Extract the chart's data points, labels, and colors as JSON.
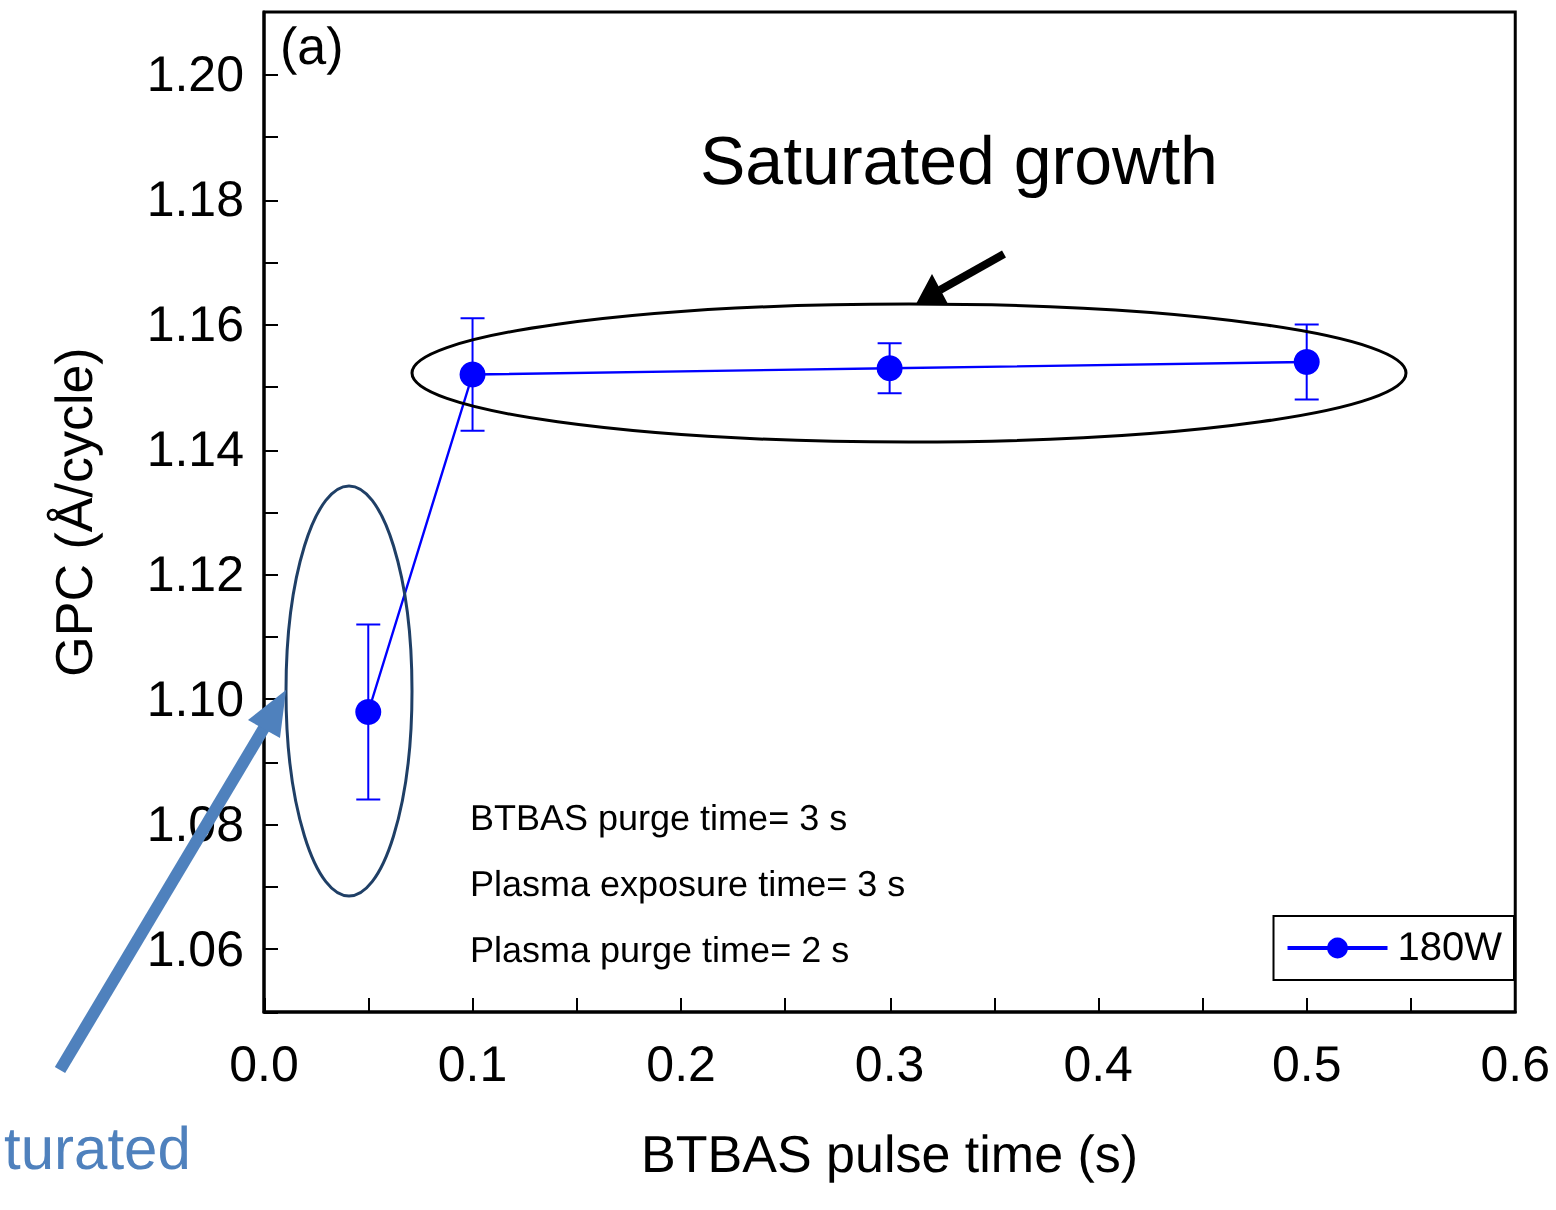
{
  "chart_data": {
    "type": "line",
    "xlabel": "BTBAS pulse time (s)",
    "ylabel": "GPC (Å/cycle)",
    "x": [
      0.05,
      0.1,
      0.3,
      0.5
    ],
    "series": [
      {
        "name": "180W",
        "color": "#0000ff",
        "values": [
          1.098,
          1.152,
          1.153,
          1.154
        ],
        "errors": [
          [
            1.084,
            1.112
          ],
          [
            1.143,
            1.161
          ],
          [
            1.149,
            1.157
          ],
          [
            1.148,
            1.16
          ]
        ]
      }
    ],
    "xlim": [
      0,
      0.6
    ],
    "xticks": [
      {
        "value": 0,
        "label": "0.0"
      },
      {
        "value": 0.05,
        "label": null
      },
      0.1,
      {
        "value": 0.15,
        "label": null
      },
      0.2,
      {
        "value": 0.25,
        "label": null
      },
      0.3,
      {
        "value": 0.35,
        "label": null
      },
      0.4,
      {
        "value": 0.45,
        "label": null
      },
      0.5,
      {
        "value": 0.55,
        "label": null
      },
      0.6
    ],
    "ylim": [
      1.05,
      1.21
    ],
    "yticks": [
      {
        "value": 1.05,
        "label": null
      },
      {
        "value": 1.06,
        "label": "1.06"
      },
      {
        "value": 1.07,
        "label": null
      },
      {
        "value": 1.08,
        "label": "1.08"
      },
      {
        "value": 1.09,
        "label": null
      },
      {
        "value": 1.1,
        "label": "1.10"
      },
      {
        "value": 1.11,
        "label": null
      },
      {
        "value": 1.12,
        "label": "1.12"
      },
      {
        "value": 1.13,
        "label": null
      },
      {
        "value": 1.14,
        "label": "1.14"
      },
      {
        "value": 1.15,
        "label": null
      },
      {
        "value": 1.16,
        "label": "1.16"
      },
      {
        "value": 1.17,
        "label": null
      },
      {
        "value": 1.18,
        "label": "1.18"
      },
      {
        "value": 1.19,
        "label": null
      },
      {
        "value": 1.2,
        "label": "1.20"
      }
    ],
    "marker": "circle",
    "line_style": "solid",
    "grid": false,
    "legend": "bottom right",
    "annotations": [
      "(a)",
      "Saturated growth",
      "BTBAS purge time= 3 s",
      "Plasma exposure time= 3 s",
      "Plasma purge time= 2 s",
      "turated"
    ]
  }
}
